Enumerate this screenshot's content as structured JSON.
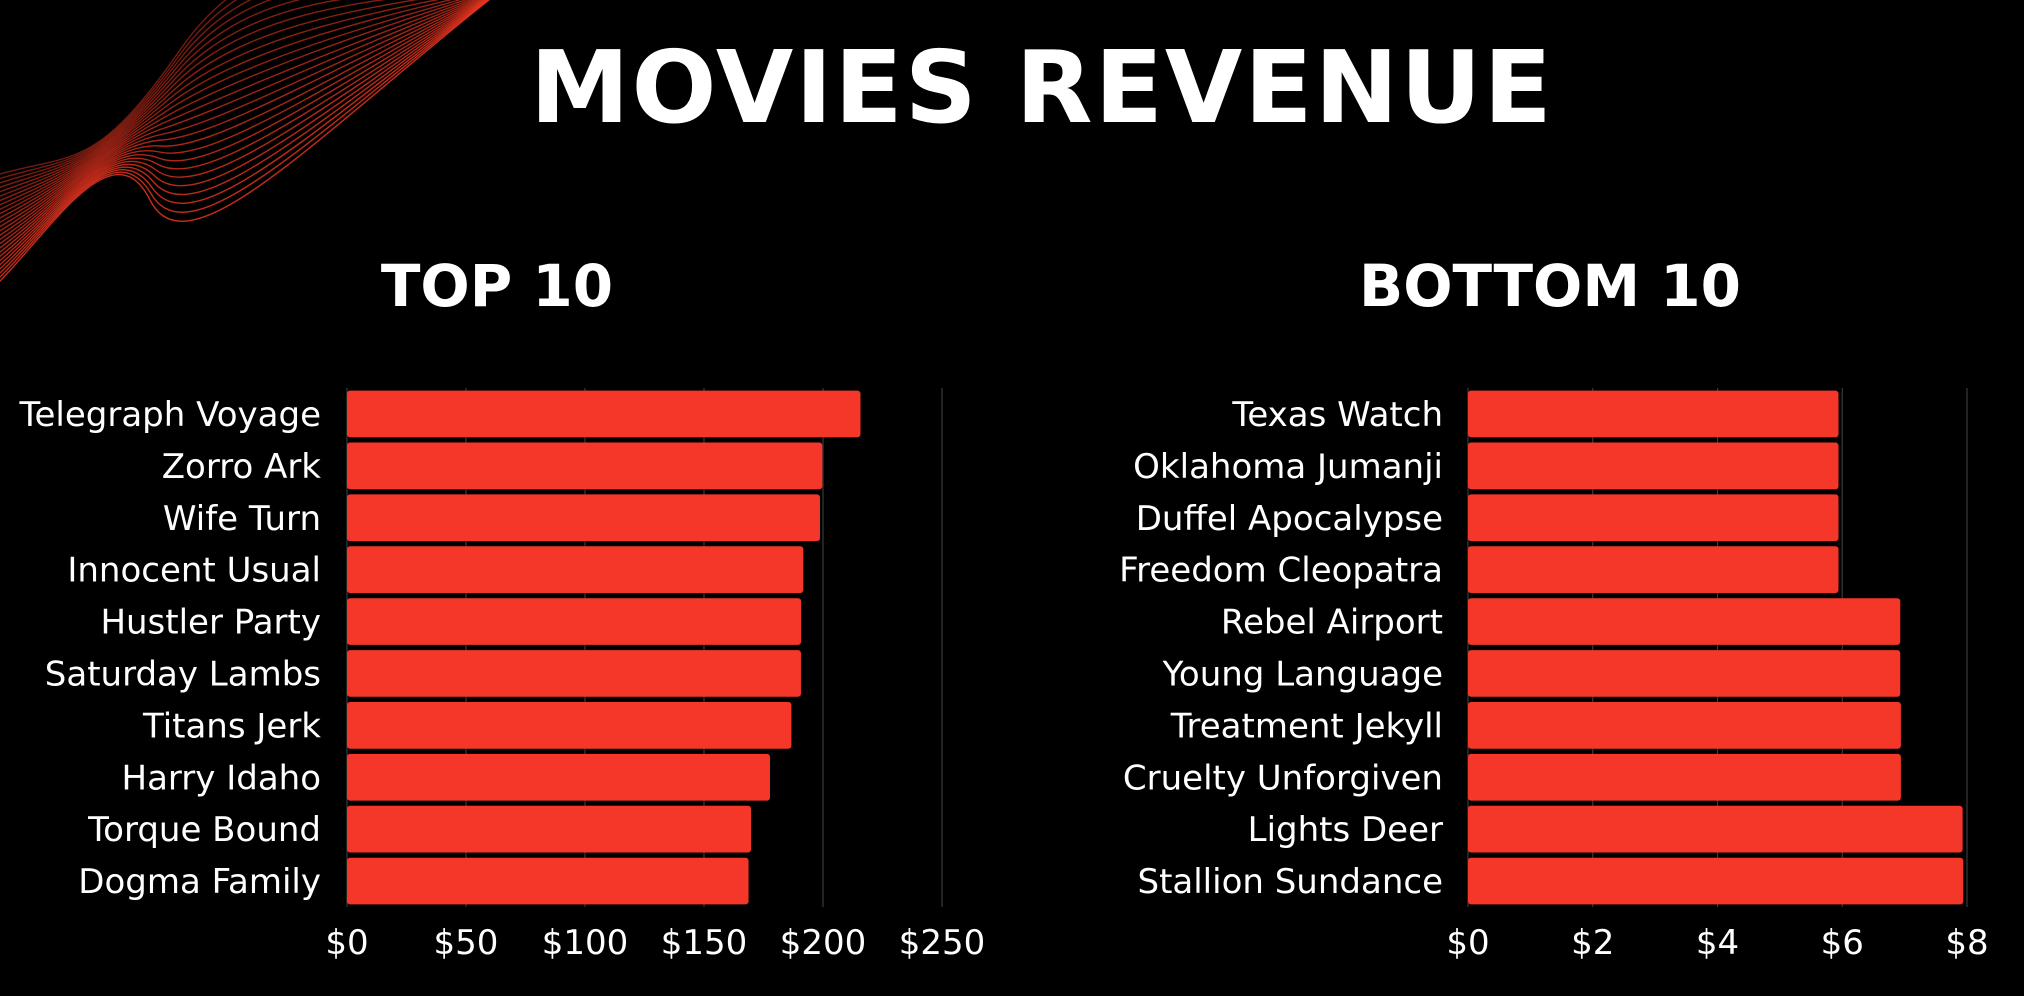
{
  "title": "MOVIES REVENUE",
  "colors": {
    "background": "#000000",
    "bar": "#f5372a",
    "text": "#ffffff",
    "grid": "#3a3a3a",
    "decor": "#e8341f"
  },
  "chart_data": [
    {
      "type": "bar",
      "orientation": "horizontal",
      "title": "TOP 10",
      "categories": [
        "Telegraph Voyage",
        "Zorro Ark",
        "Wife Turn",
        "Innocent Usual",
        "Hustler Party",
        "Saturday Lambs",
        "Titans Jerk",
        "Harry Idaho",
        "Torque Bound",
        "Dogma Family"
      ],
      "values": [
        215.75,
        199.72,
        198.73,
        191.74,
        190.78,
        190.74,
        186.73,
        177.73,
        169.76,
        168.72
      ],
      "xlim": [
        0,
        250
      ],
      "xticks": [
        "$0",
        "$50",
        "$100",
        "$150",
        "$200",
        "$250"
      ],
      "grid": true
    },
    {
      "type": "bar",
      "orientation": "horizontal",
      "title": "BOTTOM 10",
      "categories": [
        "Texas Watch",
        "Oklahoma Jumanji",
        "Duffel Apocalypse",
        "Freedom Cleopatra",
        "Rebel Airport",
        "Young Language",
        "Treatment Jekyll",
        "Cruelty Unforgiven",
        "Lights Deer",
        "Stallion Sundance"
      ],
      "values": [
        5.94,
        5.94,
        5.94,
        5.94,
        6.93,
        6.93,
        6.94,
        6.94,
        7.93,
        7.94
      ],
      "xlim": [
        0,
        8
      ],
      "xticks": [
        "$0",
        "$2",
        "$4",
        "$6",
        "$8"
      ],
      "grid": true
    }
  ]
}
